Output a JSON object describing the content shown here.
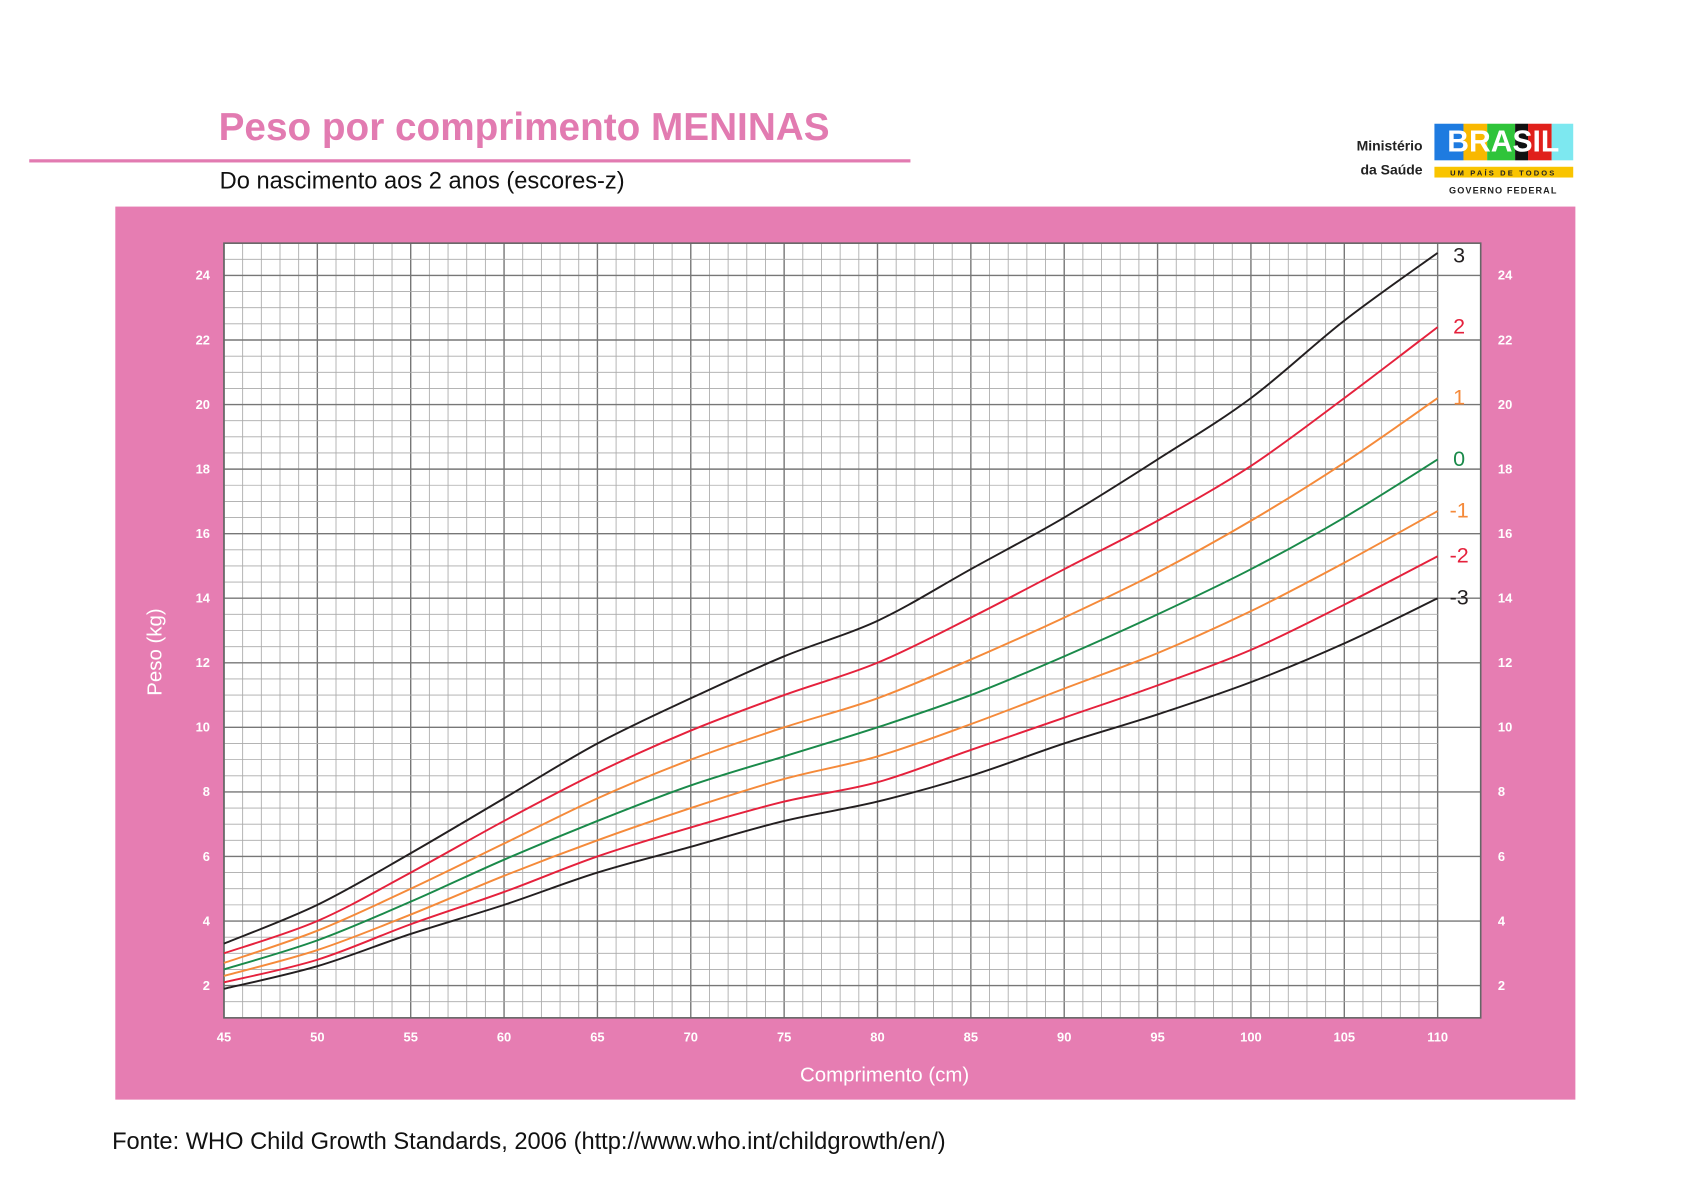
{
  "header": {
    "title": "Peso por comprimento MENINAS",
    "subtitle": "Do nascimento aos 2 anos (escores-z)"
  },
  "logo": {
    "ministry_line1": "Ministério",
    "ministry_line2": "da Saúde",
    "brand": "BRASIL",
    "slogan": "UM PAÍS DE TODOS",
    "government": "GOVERNO FEDERAL"
  },
  "footer": {
    "source": "Fonte: WHO Child Growth Standards, 2006 (http://www.who.int/childgrowth/en/)"
  },
  "colors": {
    "accent": "#e27bb1",
    "panel": "#e67db2",
    "z3": "#231f20",
    "z2": "#e5213c",
    "z1": "#f58a3a",
    "z0": "#1a8a4a"
  },
  "chart_data": {
    "type": "line",
    "title": "Peso por comprimento MENINAS",
    "subtitle": "Do nascimento aos 2 anos (escores-z)",
    "xlabel": "Comprimento (cm)",
    "ylabel": "Peso (kg)",
    "xlim": [
      45,
      110
    ],
    "ylim": [
      1,
      25
    ],
    "x_ticks": [
      45,
      50,
      55,
      60,
      65,
      70,
      75,
      80,
      85,
      90,
      95,
      100,
      105,
      110
    ],
    "y_ticks": [
      2,
      4,
      6,
      8,
      10,
      12,
      14,
      16,
      18,
      20,
      22,
      24
    ],
    "grid": true,
    "x": [
      45,
      50,
      55,
      60,
      65,
      70,
      75,
      80,
      85,
      90,
      95,
      100,
      105,
      110
    ],
    "series": [
      {
        "name": "3",
        "color": "#231f20",
        "values": [
          3.3,
          4.5,
          6.1,
          7.8,
          9.5,
          10.9,
          12.2,
          13.3,
          14.9,
          16.5,
          18.3,
          20.2,
          22.6,
          24.7
        ]
      },
      {
        "name": "2",
        "color": "#e5213c",
        "values": [
          3.0,
          4.0,
          5.5,
          7.1,
          8.6,
          9.9,
          11.0,
          12.0,
          13.4,
          14.9,
          16.4,
          18.1,
          20.2,
          22.4
        ]
      },
      {
        "name": "1",
        "color": "#f58a3a",
        "values": [
          2.7,
          3.7,
          5.0,
          6.4,
          7.8,
          9.0,
          10.0,
          10.9,
          12.1,
          13.4,
          14.8,
          16.4,
          18.2,
          20.2
        ]
      },
      {
        "name": "0",
        "color": "#1a8a4a",
        "values": [
          2.5,
          3.4,
          4.6,
          5.9,
          7.1,
          8.2,
          9.1,
          10.0,
          11.0,
          12.2,
          13.5,
          14.9,
          16.5,
          18.3
        ]
      },
      {
        "name": "-1",
        "color": "#f58a3a",
        "values": [
          2.3,
          3.1,
          4.2,
          5.4,
          6.5,
          7.5,
          8.4,
          9.1,
          10.1,
          11.2,
          12.3,
          13.6,
          15.1,
          16.7
        ]
      },
      {
        "name": "-2",
        "color": "#e5213c",
        "values": [
          2.1,
          2.8,
          3.9,
          4.9,
          6.0,
          6.9,
          7.7,
          8.3,
          9.3,
          10.3,
          11.3,
          12.4,
          13.8,
          15.3
        ]
      },
      {
        "name": "-3",
        "color": "#231f20",
        "values": [
          1.9,
          2.6,
          3.6,
          4.5,
          5.5,
          6.3,
          7.1,
          7.7,
          8.5,
          9.5,
          10.4,
          11.4,
          12.6,
          14.0
        ]
      }
    ]
  }
}
